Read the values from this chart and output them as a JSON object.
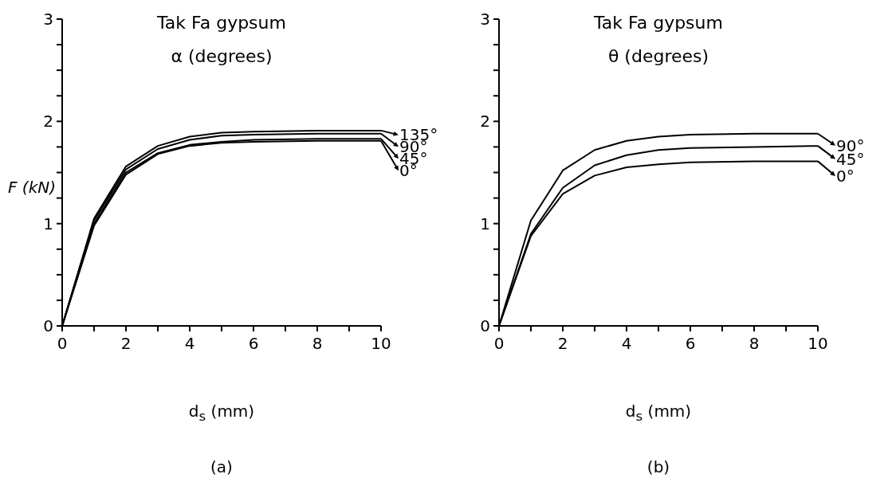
{
  "chart_data": [
    {
      "type": "line",
      "title": "Tak Fa gypsum",
      "legend_title": "α (degrees)",
      "xlabel": "d$_{s}$ (mm)",
      "ylabel": "F (kN)",
      "annotations": [
        "(a)"
      ],
      "x": [
        0,
        1,
        2,
        3,
        4,
        5,
        6,
        8,
        10
      ],
      "series": [
        {
          "name": "135°",
          "color": "#000000",
          "values": [
            0,
            1.05,
            1.56,
            1.76,
            1.85,
            1.89,
            1.9,
            1.91,
            1.91
          ]
        },
        {
          "name": "90°",
          "color": "#000000",
          "values": [
            0,
            1.03,
            1.53,
            1.73,
            1.82,
            1.86,
            1.87,
            1.88,
            1.88
          ]
        },
        {
          "name": "45°",
          "color": "#000000",
          "values": [
            0,
            1.0,
            1.5,
            1.69,
            1.77,
            1.8,
            1.82,
            1.83,
            1.83
          ]
        },
        {
          "name": "0°",
          "color": "#000000",
          "values": [
            0,
            0.98,
            1.48,
            1.68,
            1.76,
            1.79,
            1.8,
            1.81,
            1.81
          ]
        }
      ],
      "xlim": [
        0,
        10
      ],
      "xticks": [
        0,
        {
          "value": 1,
          "label": null
        },
        2,
        {
          "value": 3,
          "label": null
        },
        4,
        {
          "value": 5,
          "label": null
        },
        6,
        {
          "value": 7,
          "label": null
        },
        8,
        {
          "value": 9,
          "label": null
        },
        10
      ],
      "ylim": [
        0,
        3
      ],
      "yticks": [
        0,
        {
          "value": 0.25,
          "label": null
        },
        {
          "value": 0.5,
          "label": null
        },
        {
          "value": 0.75,
          "label": null
        },
        1,
        {
          "value": 1.25,
          "label": null
        },
        {
          "value": 1.5,
          "label": null
        },
        {
          "value": 1.75,
          "label": null
        },
        2,
        {
          "value": 2.25,
          "label": null
        },
        {
          "value": 2.5,
          "label": null
        },
        {
          "value": 2.75,
          "label": null
        },
        3
      ],
      "grid": false,
      "marker": "none",
      "line_style": "solid",
      "legend": "right"
    },
    {
      "type": "line",
      "title": "Tak Fa gypsum",
      "legend_title": "θ (degrees)",
      "xlabel": "d$_{s}$ (mm)",
      "annotations": [
        "(b)"
      ],
      "x": [
        0,
        1,
        2,
        3,
        4,
        5,
        6,
        8,
        10
      ],
      "series": [
        {
          "name": "90°",
          "color": "#000000",
          "values": [
            0,
            1.03,
            1.52,
            1.72,
            1.81,
            1.85,
            1.87,
            1.88,
            1.88
          ]
        },
        {
          "name": "45°",
          "color": "#000000",
          "values": [
            0,
            0.9,
            1.35,
            1.57,
            1.67,
            1.72,
            1.74,
            1.75,
            1.76
          ]
        },
        {
          "name": "0°",
          "color": "#000000",
          "values": [
            0,
            0.88,
            1.29,
            1.47,
            1.55,
            1.58,
            1.6,
            1.61,
            1.61
          ]
        }
      ],
      "xlim": [
        0,
        10
      ],
      "xticks": [
        0,
        {
          "value": 1,
          "label": null
        },
        2,
        {
          "value": 3,
          "label": null
        },
        4,
        {
          "value": 5,
          "label": null
        },
        6,
        {
          "value": 7,
          "label": null
        },
        8,
        {
          "value": 9,
          "label": null
        },
        10
      ],
      "ylim": [
        0,
        3
      ],
      "yticks": [
        0,
        {
          "value": 0.25,
          "label": null
        },
        {
          "value": 0.5,
          "label": null
        },
        {
          "value": 0.75,
          "label": null
        },
        1,
        {
          "value": 1.25,
          "label": null
        },
        {
          "value": 1.5,
          "label": null
        },
        {
          "value": 1.75,
          "label": null
        },
        2,
        {
          "value": 2.25,
          "label": null
        },
        {
          "value": 2.5,
          "label": null
        },
        {
          "value": 2.75,
          "label": null
        },
        3
      ],
      "grid": false,
      "marker": "none",
      "line_style": "solid",
      "legend": "right"
    }
  ]
}
